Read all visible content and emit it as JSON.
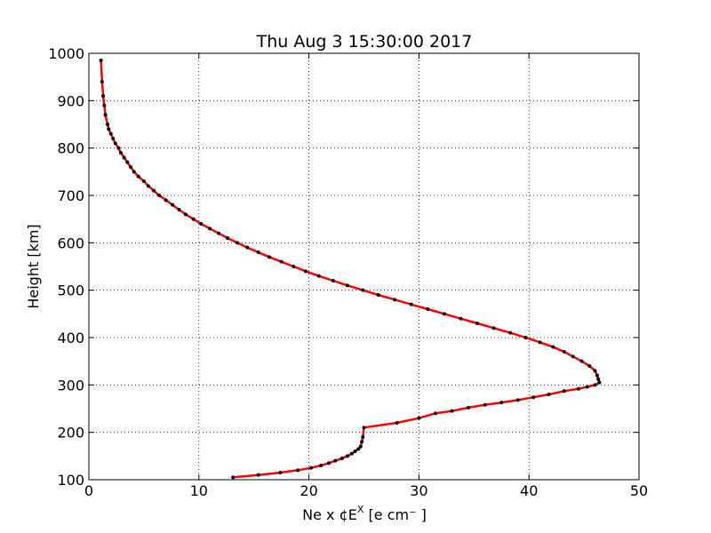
{
  "chart_data": {
    "type": "line",
    "title": "Thu Aug  3 15:30:00 2017",
    "xlabel": "Ne x ¢E",
    "xlabel_sup": "X",
    "xlabel_units": "  [e cm⁻ ]",
    "ylabel": "Height [km]",
    "xlim": [
      0,
      50
    ],
    "ylim": [
      100,
      1000
    ],
    "xticks": [
      0,
      10,
      20,
      30,
      40,
      50
    ],
    "yticks": [
      100,
      200,
      300,
      400,
      500,
      600,
      700,
      800,
      900,
      1000
    ],
    "grid": true,
    "line_color": "#ff0000",
    "marker_color": "#000000",
    "series": [
      {
        "x": [
          13.1,
          15.4,
          17.4,
          19.0,
          20.2,
          21.1,
          21.8,
          22.4,
          23.0,
          23.5,
          23.9,
          24.2,
          24.5,
          24.7,
          24.8,
          24.9,
          25.0,
          28.0,
          30.0,
          31.5,
          33.0,
          34.5,
          36.0,
          37.5,
          39.0,
          40.4,
          41.8,
          43.2,
          44.5,
          45.3,
          46.0,
          46.4,
          46.3,
          46.2,
          46.0,
          45.5,
          44.8,
          44.0,
          43.2,
          42.2,
          41.0,
          39.7,
          38.3,
          36.8,
          35.3,
          33.8,
          32.3,
          30.8,
          29.3,
          27.8,
          26.3,
          24.9,
          23.5,
          22.2,
          20.9,
          19.7,
          18.6,
          17.5,
          16.4,
          15.4,
          14.4,
          13.5,
          12.6,
          11.8,
          11.0,
          10.2,
          9.5,
          8.8,
          8.2,
          7.6,
          7.0,
          6.4,
          5.9,
          5.4,
          5.0,
          4.5,
          4.1,
          3.8,
          3.5,
          3.2,
          2.9,
          2.7,
          2.4,
          2.2,
          2.0,
          1.8,
          1.7,
          1.5,
          1.4,
          1.3,
          1.2,
          1.1
        ],
        "y": [
          105,
          110,
          115,
          120,
          125,
          130,
          135,
          140,
          145,
          150,
          155,
          160,
          165,
          170,
          180,
          190,
          210,
          220,
          230,
          240,
          245,
          252,
          258,
          263,
          268,
          274,
          280,
          287,
          292,
          296,
          300,
          305,
          312,
          320,
          330,
          340,
          350,
          360,
          370,
          380,
          390,
          400,
          410,
          420,
          430,
          440,
          450,
          460,
          470,
          480,
          490,
          500,
          510,
          520,
          530,
          540,
          550,
          560,
          570,
          580,
          590,
          600,
          610,
          620,
          630,
          640,
          650,
          660,
          670,
          680,
          690,
          700,
          710,
          720,
          730,
          740,
          750,
          760,
          770,
          780,
          790,
          800,
          810,
          820,
          830,
          840,
          850,
          870,
          890,
          910,
          940,
          985
        ]
      }
    ]
  }
}
